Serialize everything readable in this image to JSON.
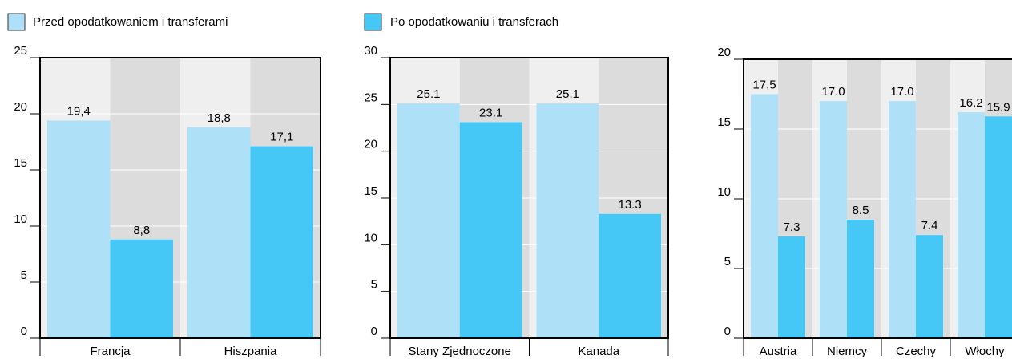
{
  "chart_data": [
    {
      "type": "bar",
      "categories": [
        "Francja",
        "Hiszpania"
      ],
      "series": [
        {
          "name": "Przed opodatkowaniem i transferami",
          "color": "#aee0f8",
          "values": [
            19.4,
            18.8
          ],
          "value_labels": [
            "19,4",
            "18,8"
          ]
        },
        {
          "name": "Po opodatkowaniu i transferach",
          "color": "#45c8f5",
          "values": [
            8.8,
            17.1
          ],
          "value_labels": [
            "8,8",
            "17,1"
          ]
        }
      ],
      "ylim": [
        0,
        25
      ],
      "yticks": [
        0,
        5,
        10,
        15,
        20,
        25
      ],
      "grid": true
    },
    {
      "type": "bar",
      "categories": [
        "Stany Zjednoczone",
        "Kanada"
      ],
      "series": [
        {
          "name": "Przed opodatkowaniem i transferami",
          "color": "#aee0f8",
          "values": [
            25.1,
            25.1
          ],
          "value_labels": [
            "25.1",
            "25.1"
          ]
        },
        {
          "name": "Po opodatkowaniu i transferach",
          "color": "#45c8f5",
          "values": [
            23.1,
            13.3
          ],
          "value_labels": [
            "23.1",
            "13.3"
          ]
        }
      ],
      "ylim": [
        0,
        30
      ],
      "yticks": [
        0,
        5,
        10,
        15,
        20,
        25,
        30
      ],
      "grid": true
    },
    {
      "type": "bar",
      "categories": [
        "Austria",
        "Niemcy",
        "Czechy",
        "Włochy"
      ],
      "series": [
        {
          "name": "Przed opodatkowaniem i transferami",
          "color": "#aee0f8",
          "values": [
            17.5,
            17.0,
            17.0,
            16.2
          ],
          "value_labels": [
            "17.5",
            "17.0",
            "17.0",
            "16.2"
          ]
        },
        {
          "name": "Po opodatkowaniu i transferach",
          "color": "#45c8f5",
          "values": [
            7.3,
            8.5,
            7.4,
            15.9
          ],
          "value_labels": [
            "7.3",
            "8.5",
            "7.4",
            "15.9"
          ]
        }
      ],
      "ylim": [
        0,
        20
      ],
      "yticks": [
        0,
        5,
        10,
        15,
        20
      ],
      "grid": true
    }
  ]
}
